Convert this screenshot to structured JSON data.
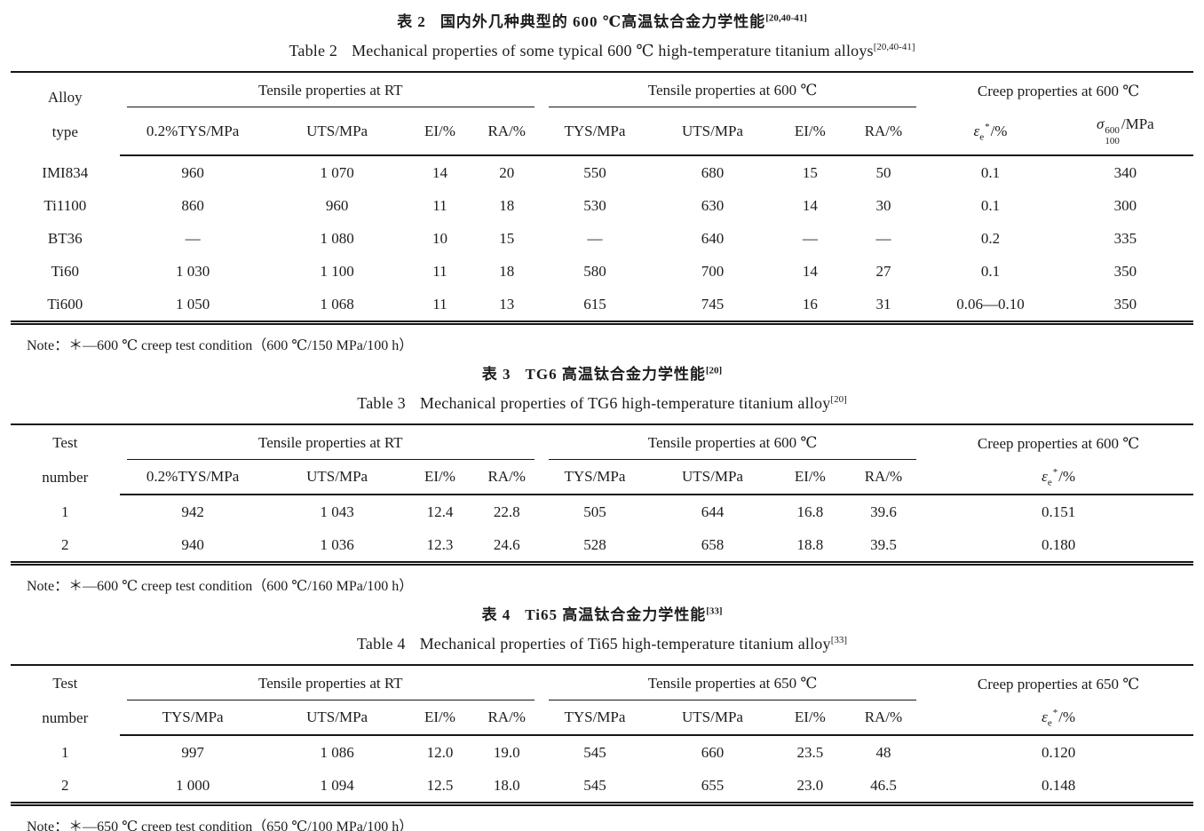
{
  "page": {
    "background": "#ffffff",
    "ink": "#1c1c1c"
  },
  "tables": [
    {
      "title_zh_label": "表 2",
      "title_zh": "国内外几种典型的 600 ℃高温钛合金力学性能",
      "title_zh_ref": "[20,40-41]",
      "title_en_label": "Table 2",
      "title_en": "Mechanical properties of some typical 600 ℃ high-temperature titanium alloys",
      "title_en_ref": "[20,40-41]",
      "stub": {
        "line1": "Alloy",
        "line2": "type"
      },
      "groups": [
        {
          "label": "Tensile properties at RT"
        },
        {
          "label": "Tensile properties at 600 ℃"
        },
        {
          "label": "Creep properties at 600 ℃"
        }
      ],
      "subheaders": [
        "0.2%TYS/MPa",
        "UTS/MPa",
        "EI/%",
        "RA/%",
        "TYS/MPa",
        "UTS/MPa",
        "EI/%",
        "RA/%"
      ],
      "creep": {
        "eps": {
          "base": "ε",
          "sub": "e",
          "sup": "*",
          "rest": "/%"
        },
        "sigma": {
          "base": "σ",
          "sup": "600",
          "sub": "100",
          "rest": "/MPa"
        }
      },
      "rows": [
        [
          "IMI834",
          "960",
          "1 070",
          "14",
          "20",
          "550",
          "680",
          "15",
          "50",
          "0.1",
          "340"
        ],
        [
          "Ti1100",
          "860",
          "960",
          "11",
          "18",
          "530",
          "630",
          "14",
          "30",
          "0.1",
          "300"
        ],
        [
          "BT36",
          "—",
          "1 080",
          "10",
          "15",
          "—",
          "640",
          "—",
          "—",
          "0.2",
          "335"
        ],
        [
          "Ti60",
          "1 030",
          "1 100",
          "11",
          "18",
          "580",
          "700",
          "14",
          "27",
          "0.1",
          "350"
        ],
        [
          "Ti600",
          "1 050",
          "1 068",
          "11",
          "13",
          "615",
          "745",
          "16",
          "31",
          "0.06—0.10",
          "350"
        ]
      ],
      "note": "Note：＊—600 ℃ creep test condition（600 ℃/150 MPa/100 h）"
    },
    {
      "title_zh_label": "表 3",
      "title_zh": "TG6 高温钛合金力学性能",
      "title_zh_ref": "[20]",
      "title_en_label": "Table 3",
      "title_en": "Mechanical properties of TG6 high-temperature titanium alloy",
      "title_en_ref": "[20]",
      "stub": {
        "line1": "Test",
        "line2": "number"
      },
      "groups": [
        {
          "label": "Tensile properties at RT"
        },
        {
          "label": "Tensile properties at 600 ℃"
        },
        {
          "label": "Creep properties at 600 ℃"
        }
      ],
      "subheaders": [
        "0.2%TYS/MPa",
        "UTS/MPa",
        "EI/%",
        "RA/%",
        "TYS/MPa",
        "UTS/MPa",
        "EI/%",
        "RA/%"
      ],
      "creep": {
        "eps": {
          "base": "ε",
          "sub": "e",
          "sup": "*",
          "rest": "/%"
        }
      },
      "rows": [
        [
          "1",
          "942",
          "1 043",
          "12.4",
          "22.8",
          "505",
          "644",
          "16.8",
          "39.6",
          "0.151"
        ],
        [
          "2",
          "940",
          "1 036",
          "12.3",
          "24.6",
          "528",
          "658",
          "18.8",
          "39.5",
          "0.180"
        ]
      ],
      "note": "Note：＊—600 ℃ creep test condition（600 ℃/160 MPa/100 h）"
    },
    {
      "title_zh_label": "表 4",
      "title_zh": "Ti65 高温钛合金力学性能",
      "title_zh_ref": "[33]",
      "title_en_label": "Table 4",
      "title_en": "Mechanical properties of Ti65 high-temperature titanium alloy",
      "title_en_ref": "[33]",
      "stub": {
        "line1": "Test",
        "line2": "number"
      },
      "groups": [
        {
          "label": "Tensile properties at RT"
        },
        {
          "label": "Tensile properties at 650 ℃"
        },
        {
          "label": "Creep properties at 650 ℃"
        }
      ],
      "subheaders": [
        "TYS/MPa",
        "UTS/MPa",
        "EI/%",
        "RA/%",
        "TYS/MPa",
        "UTS/MPa",
        "EI/%",
        "RA/%"
      ],
      "creep": {
        "eps": {
          "base": "ε",
          "sub": "e",
          "sup": "*",
          "rest": "/%"
        }
      },
      "rows": [
        [
          "1",
          "997",
          "1 086",
          "12.0",
          "19.0",
          "545",
          "660",
          "23.5",
          "48",
          "0.120"
        ],
        [
          "2",
          "1 000",
          "1 094",
          "12.5",
          "18.0",
          "545",
          "655",
          "23.0",
          "46.5",
          "0.148"
        ]
      ],
      "note": "Note：＊—650 ℃ creep test condition（650 ℃/100 MPa/100 h）"
    }
  ]
}
